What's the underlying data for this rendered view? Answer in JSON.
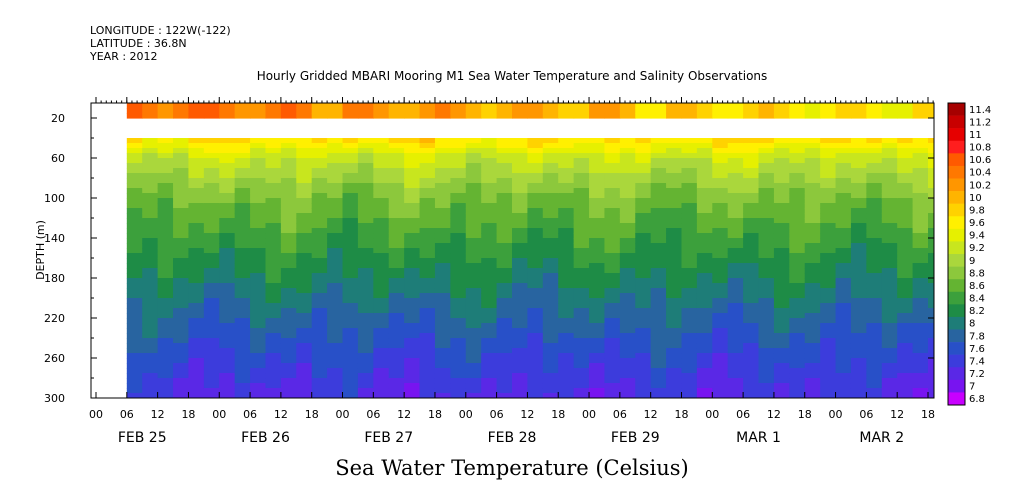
{
  "header": {
    "longitude": "LONGITUDE : 122W(-122)",
    "latitude": "LATITUDE : 36.8N",
    "year": "YEAR : 2012"
  },
  "chart_data": {
    "type": "heatmap",
    "title": "Hourly Gridded MBARI Mooring M1 Sea Water Temperature and Salinity Observations",
    "xlabel": "Sea Water Temperature (Celsius)",
    "ylabel": "DEPTH (m)",
    "y_ticks": [
      "20",
      "60",
      "100",
      "140",
      "180",
      "220",
      "260",
      "300"
    ],
    "y_range": [
      5,
      300
    ],
    "y_inverted": true,
    "x_hour_ticks": [
      "00",
      "06",
      "12",
      "18",
      "00",
      "06",
      "12",
      "18",
      "00",
      "06",
      "12",
      "18",
      "00",
      "06",
      "12",
      "18",
      "00",
      "06",
      "12",
      "18",
      "00",
      "06",
      "12",
      "18",
      "00",
      "06",
      "12",
      "18"
    ],
    "x_date_labels": [
      "FEB 25",
      "FEB 26",
      "FEB 27",
      "FEB 28",
      "FEB 29",
      "MAR  1",
      "MAR  2"
    ],
    "data_start_hour": 6,
    "data_gap_depth_m": [
      20,
      40
    ],
    "colorbar_levels": [
      "11.4",
      "11.2",
      "11",
      "10.8",
      "10.6",
      "10.4",
      "10.2",
      "10",
      "9.8",
      "9.6",
      "9.4",
      "9.2",
      "9",
      "8.8",
      "8.6",
      "8.4",
      "8.2",
      "8",
      "7.8",
      "7.6",
      "7.4",
      "7.2",
      "7",
      "6.8"
    ],
    "colorbar_colors": [
      "#a60000",
      "#c80000",
      "#e60000",
      "#ff1e1e",
      "#ff5a00",
      "#ff7800",
      "#ff9600",
      "#ffb400",
      "#ffd200",
      "#fff000",
      "#e6f000",
      "#c8e61e",
      "#aad73c",
      "#8cc83c",
      "#64b432",
      "#3ca03c",
      "#1e8c46",
      "#1e7d78",
      "#2864a0",
      "#2850c8",
      "#3c3cdc",
      "#5a28e6",
      "#7814f0",
      "#c800ff"
    ],
    "temperature_profile": [
      {
        "depth_m": 10,
        "temp_c": 10.7
      },
      {
        "depth_m": 45,
        "temp_c": 9.5
      },
      {
        "depth_m": 60,
        "temp_c": 9.1
      },
      {
        "depth_m": 100,
        "temp_c": 8.6
      },
      {
        "depth_m": 140,
        "temp_c": 8.3
      },
      {
        "depth_m": 180,
        "temp_c": 8.0
      },
      {
        "depth_m": 220,
        "temp_c": 7.7
      },
      {
        "depth_m": 260,
        "temp_c": 7.4
      },
      {
        "depth_m": 300,
        "temp_c": 7.15
      }
    ]
  }
}
